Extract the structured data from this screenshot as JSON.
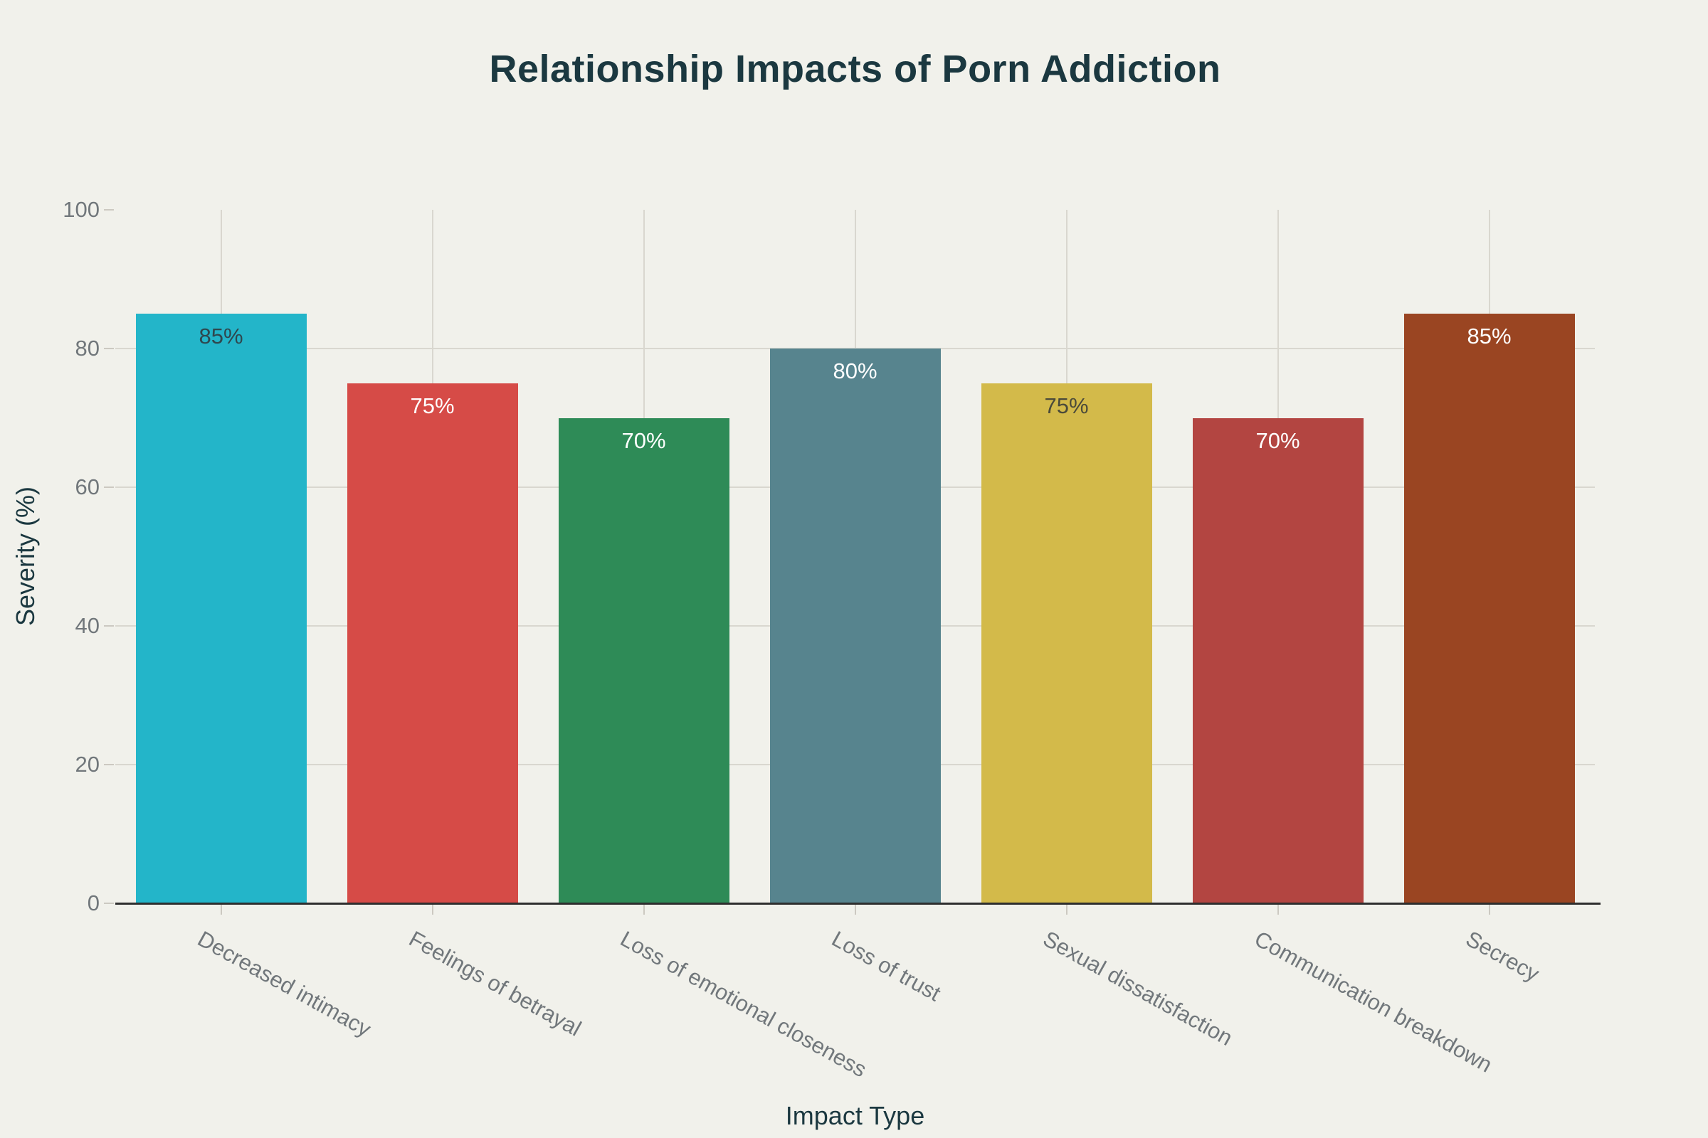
{
  "title": "Relationship Impacts of Porn Addiction",
  "chart_data": {
    "type": "bar",
    "title": "Relationship Impacts of Porn Addiction",
    "xlabel": "Impact Type",
    "ylabel": "Severity (%)",
    "categories": [
      "Decreased intimacy",
      "Feelings of betrayal",
      "Loss of emotional closeness",
      "Loss of trust",
      "Sexual dissatisfaction",
      "Communication breakdown",
      "Secrecy"
    ],
    "values": [
      85,
      75,
      70,
      80,
      75,
      70,
      85
    ],
    "value_labels": [
      "85%",
      "75%",
      "70%",
      "80%",
      "75%",
      "70%",
      "85%"
    ],
    "bar_colors": [
      "#23b5c9",
      "#d64b47",
      "#2e8b57",
      "#57848e",
      "#d3ba4a",
      "#b34541",
      "#9a4522"
    ],
    "value_label_colors": [
      "#2f474e",
      "#ffffff",
      "#ffffff",
      "#ffffff",
      "#4a4a3a",
      "#ffffff",
      "#ffffff"
    ],
    "ylim": [
      0,
      100
    ],
    "yticks": [
      0,
      20,
      40,
      60,
      80,
      100
    ],
    "grid": true,
    "legend": "none",
    "xtick_angle_deg": 29,
    "colors": {
      "background": "#f1f1eb",
      "title": "#1b3840",
      "axis_title": "#1b3840",
      "tick_label": "#71777b",
      "gridline": "#d9d7cf",
      "axis_line": "#2e2e2e",
      "tick_mark": "#ccc9c1"
    }
  }
}
